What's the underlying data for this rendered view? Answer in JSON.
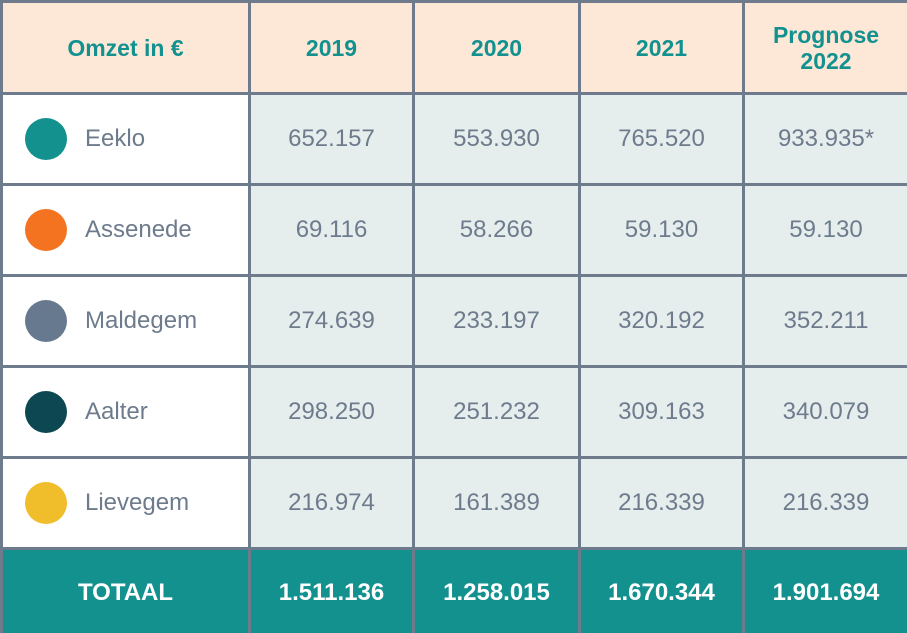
{
  "table": {
    "header": [
      "Omzet in €",
      "2019",
      "2020",
      "2021",
      "Prognose 2022"
    ],
    "rows": [
      {
        "label": "Eeklo",
        "color": "#12918f",
        "cells": [
          "652.157",
          "553.930",
          "765.520",
          "933.935*"
        ]
      },
      {
        "label": "Assenede",
        "color": "#f47321",
        "cells": [
          "69.116",
          "58.266",
          "59.130",
          "59.130"
        ]
      },
      {
        "label": "Maldegem",
        "color": "#67798f",
        "cells": [
          "274.639",
          "233.197",
          "320.192",
          "352.211"
        ]
      },
      {
        "label": "Aalter",
        "color": "#0d4751",
        "cells": [
          "298.250",
          "251.232",
          "309.163",
          "340.079"
        ]
      },
      {
        "label": "Lievegem",
        "color": "#f0bd2b",
        "cells": [
          "216.974",
          "161.389",
          "216.339",
          "216.339"
        ]
      }
    ],
    "total": [
      "TOTAAL",
      "1.511.136",
      "1.258.015",
      "1.670.344",
      "1.901.694"
    ]
  }
}
